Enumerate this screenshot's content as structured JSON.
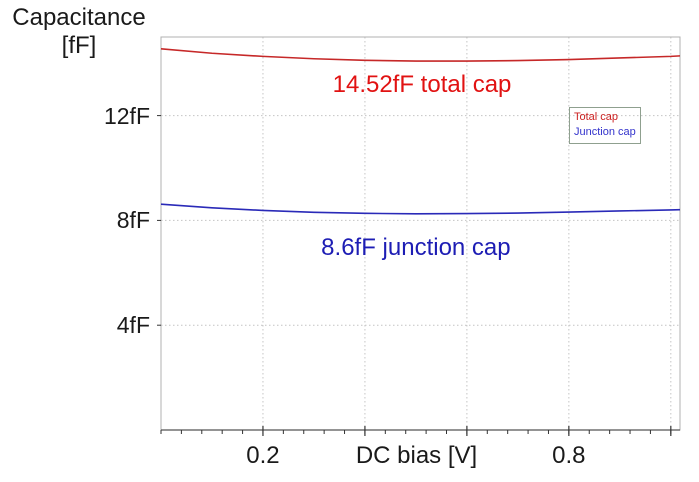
{
  "title": {
    "line1": "Capacitance",
    "line2": "[fF]"
  },
  "chart_data": {
    "type": "line",
    "title": "",
    "xlabel": "DC bias [V]",
    "ylabel": "Capacitance [fF]",
    "xlim": [
      0,
      1.018
    ],
    "ylim": [
      0,
      15
    ],
    "grid": {
      "enabled": true,
      "style": "dotted",
      "x_major": [
        0.2,
        0.4,
        0.6,
        0.8,
        1.0
      ],
      "y_major": [
        4,
        8,
        12
      ],
      "x_minor_step": 0.04
    },
    "x": [
      0,
      0.1,
      0.2,
      0.3,
      0.4,
      0.5,
      0.6,
      0.7,
      0.8,
      0.9,
      1.0,
      1.018
    ],
    "series": [
      {
        "name": "Total cap",
        "color": "#c62828",
        "values": [
          14.55,
          14.38,
          14.26,
          14.17,
          14.11,
          14.08,
          14.08,
          14.1,
          14.14,
          14.2,
          14.26,
          14.28
        ]
      },
      {
        "name": "Junction cap",
        "color": "#2a2ab8",
        "values": [
          8.62,
          8.48,
          8.38,
          8.31,
          8.27,
          8.25,
          8.26,
          8.28,
          8.32,
          8.36,
          8.4,
          8.41
        ]
      }
    ],
    "xticks": [
      {
        "value": 0.2,
        "label": "0.2"
      },
      {
        "value": 0.8,
        "label": "0.8"
      }
    ],
    "yticks": [
      {
        "value": 12,
        "label": "12fF"
      },
      {
        "value": 8,
        "label": "8fF"
      },
      {
        "value": 4,
        "label": "4fF"
      }
    ],
    "annotations": [
      {
        "text": "14.52fF total cap",
        "color": "#e11212",
        "x": 0.512,
        "y": 13.15
      },
      {
        "text": "8.6fF junction cap",
        "color": "#1d1db4",
        "x": 0.5,
        "y": 6.95
      }
    ],
    "legend": {
      "position": "upper-right",
      "items": [
        {
          "label": "Total cap",
          "color": "#cc2222"
        },
        {
          "label": "Junction cap",
          "color": "#3333cc"
        }
      ]
    }
  },
  "colors": {
    "plot_border": "#b0b0b0",
    "bottom_axis": "#555555",
    "gridline": "#c4c4c4",
    "tick": "#333333",
    "background": "#ffffff"
  }
}
